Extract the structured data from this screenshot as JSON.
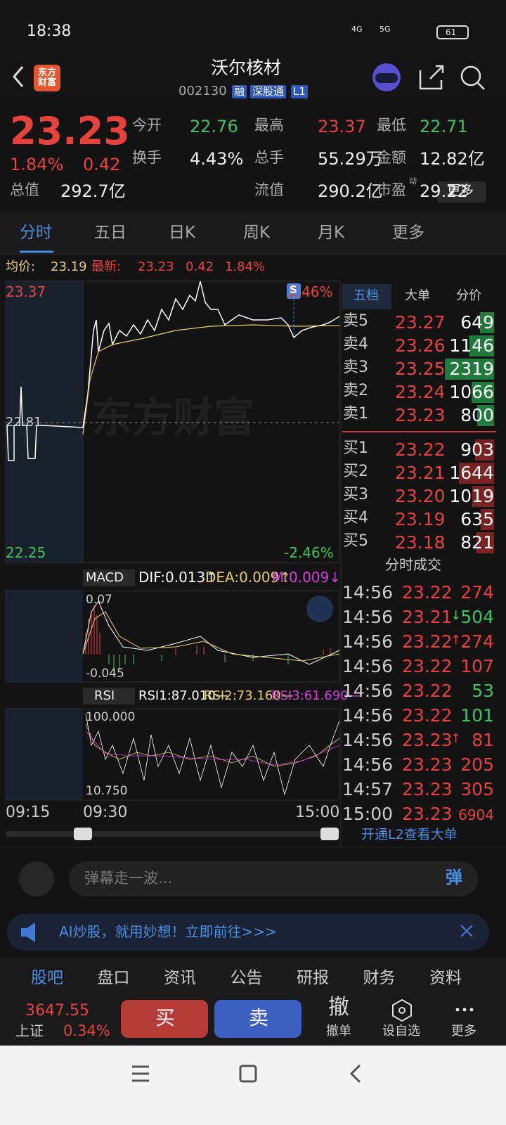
{
  "status_bar": {
    "time": "18:38",
    "network": [
      "4G",
      "5G"
    ],
    "battery": "61"
  },
  "header": {
    "logo": "东方财富",
    "title": "沃尔核材",
    "code": "002130",
    "tags": [
      "融",
      "深股通",
      "L1"
    ]
  },
  "quote": {
    "price": "23.23",
    "change_pct": "1.84%",
    "change": "0.42",
    "stats": [
      {
        "label": "今开",
        "value": "22.76",
        "color": "#3ec45f"
      },
      {
        "label": "最高",
        "value": "23.37",
        "color": "#e8423c"
      },
      {
        "label": "最低",
        "value": "22.71",
        "color": "#3ec45f"
      },
      {
        "label": "换手",
        "value": "4.43%",
        "color": "#eeeeee"
      },
      {
        "label": "总手",
        "value": "55.29万",
        "color": "#eeeeee"
      },
      {
        "label": "金额",
        "value": "12.82亿",
        "color": "#eeeeee"
      },
      {
        "label": "总值",
        "value": "292.7亿",
        "color": "#eeeeee"
      },
      {
        "label": "流值",
        "value": "290.2亿",
        "color": "#eeeeee"
      },
      {
        "label": "市盈",
        "sup": "动",
        "value": "29.22",
        "color": "#eeeeee"
      }
    ],
    "more": "更多"
  },
  "tabs": {
    "items": [
      "分时",
      "五日",
      "日K",
      "周K",
      "月K",
      "更多"
    ],
    "active": 0
  },
  "intraday": {
    "avg_label": "均价:",
    "avg": "23.19",
    "latest_label": "最新:",
    "latest": "23.23",
    "change": "0.42",
    "change_pct": "1.84%",
    "high": "23.37",
    "low": "22.25",
    "prev_close": "22.81",
    "high_pct": "2.46%",
    "low_pct": "-2.46%",
    "watermark": "东方财富",
    "marker": "S"
  },
  "macd": {
    "label": "MACD",
    "dif": "DIF:0.013↑",
    "dea": "DEA:0.009↑",
    "m": "M:0.009↓",
    "max": "0.07",
    "min": "-0.045"
  },
  "rsi": {
    "label": "RSI",
    "rsi1": "RSI1:87.010—",
    "rsi2": "RSI2:73.160—",
    "rsi3": "RSI3:61.690—",
    "max": "100.000",
    "min": "10.750"
  },
  "time_axis": [
    "09:15",
    "09:30",
    "15:00"
  ],
  "order_book": {
    "tabs": [
      "五档",
      "大单",
      "分价"
    ],
    "asks": [
      {
        "label": "卖5",
        "price": "23.27",
        "volume": 649
      },
      {
        "label": "卖4",
        "price": "23.26",
        "volume": 1146
      },
      {
        "label": "卖3",
        "price": "23.25",
        "volume": 2319
      },
      {
        "label": "卖2",
        "price": "23.24",
        "volume": 1066
      },
      {
        "label": "卖1",
        "price": "23.23",
        "volume": 800
      }
    ],
    "bids": [
      {
        "label": "买1",
        "price": "23.22",
        "volume": 903
      },
      {
        "label": "买2",
        "price": "23.21",
        "volume": 1644
      },
      {
        "label": "买3",
        "price": "23.20",
        "volume": 1019
      },
      {
        "label": "买4",
        "price": "23.19",
        "volume": 635
      },
      {
        "label": "买5",
        "price": "23.18",
        "volume": 821
      }
    ]
  },
  "trades": {
    "title": "分时成交",
    "rows": [
      {
        "time": "14:56",
        "price": "23.22",
        "volume": 274,
        "color": "#e8423c"
      },
      {
        "time": "14:56",
        "price": "23.21",
        "arrow": "↓",
        "volume": 504,
        "color": "#3ec45f"
      },
      {
        "time": "14:56",
        "price": "23.22",
        "arrow": "↑",
        "volume": 274,
        "color": "#e8423c"
      },
      {
        "time": "14:56",
        "price": "23.22",
        "volume": 107,
        "color": "#e8423c"
      },
      {
        "time": "14:56",
        "price": "23.22",
        "volume": 53,
        "color": "#3ec45f"
      },
      {
        "time": "14:56",
        "price": "23.22",
        "volume": 101,
        "color": "#3ec45f"
      },
      {
        "time": "14:56",
        "price": "23.23",
        "arrow": "↑",
        "volume": 81,
        "color": "#e8423c"
      },
      {
        "time": "14:56",
        "price": "23.23",
        "volume": 205,
        "color": "#e8423c"
      },
      {
        "time": "14:57",
        "price": "23.23",
        "volume": 305,
        "color": "#e8423c"
      },
      {
        "time": "15:00",
        "price": "23.23",
        "volume": 6904,
        "color": "#e8423c"
      }
    ],
    "l2_link": "开通L2查看大单"
  },
  "comment": {
    "placeholder": "弹幕走一波...",
    "button": "弹"
  },
  "ad": {
    "text": "AI炒股，就用妙想！立即前往>>>"
  },
  "bottom_tabs": {
    "items": [
      "股吧",
      "盘口",
      "资讯",
      "公告",
      "研报",
      "财务",
      "资料"
    ],
    "active": 0
  },
  "footer": {
    "index": {
      "value": "3647.55",
      "name": "上证",
      "change_pct": "0.34%"
    },
    "buy": "买",
    "sell": "卖",
    "actions": [
      {
        "icon": "撤",
        "label": "撤单"
      },
      {
        "label": "设自选"
      },
      {
        "label": "更多"
      }
    ]
  }
}
